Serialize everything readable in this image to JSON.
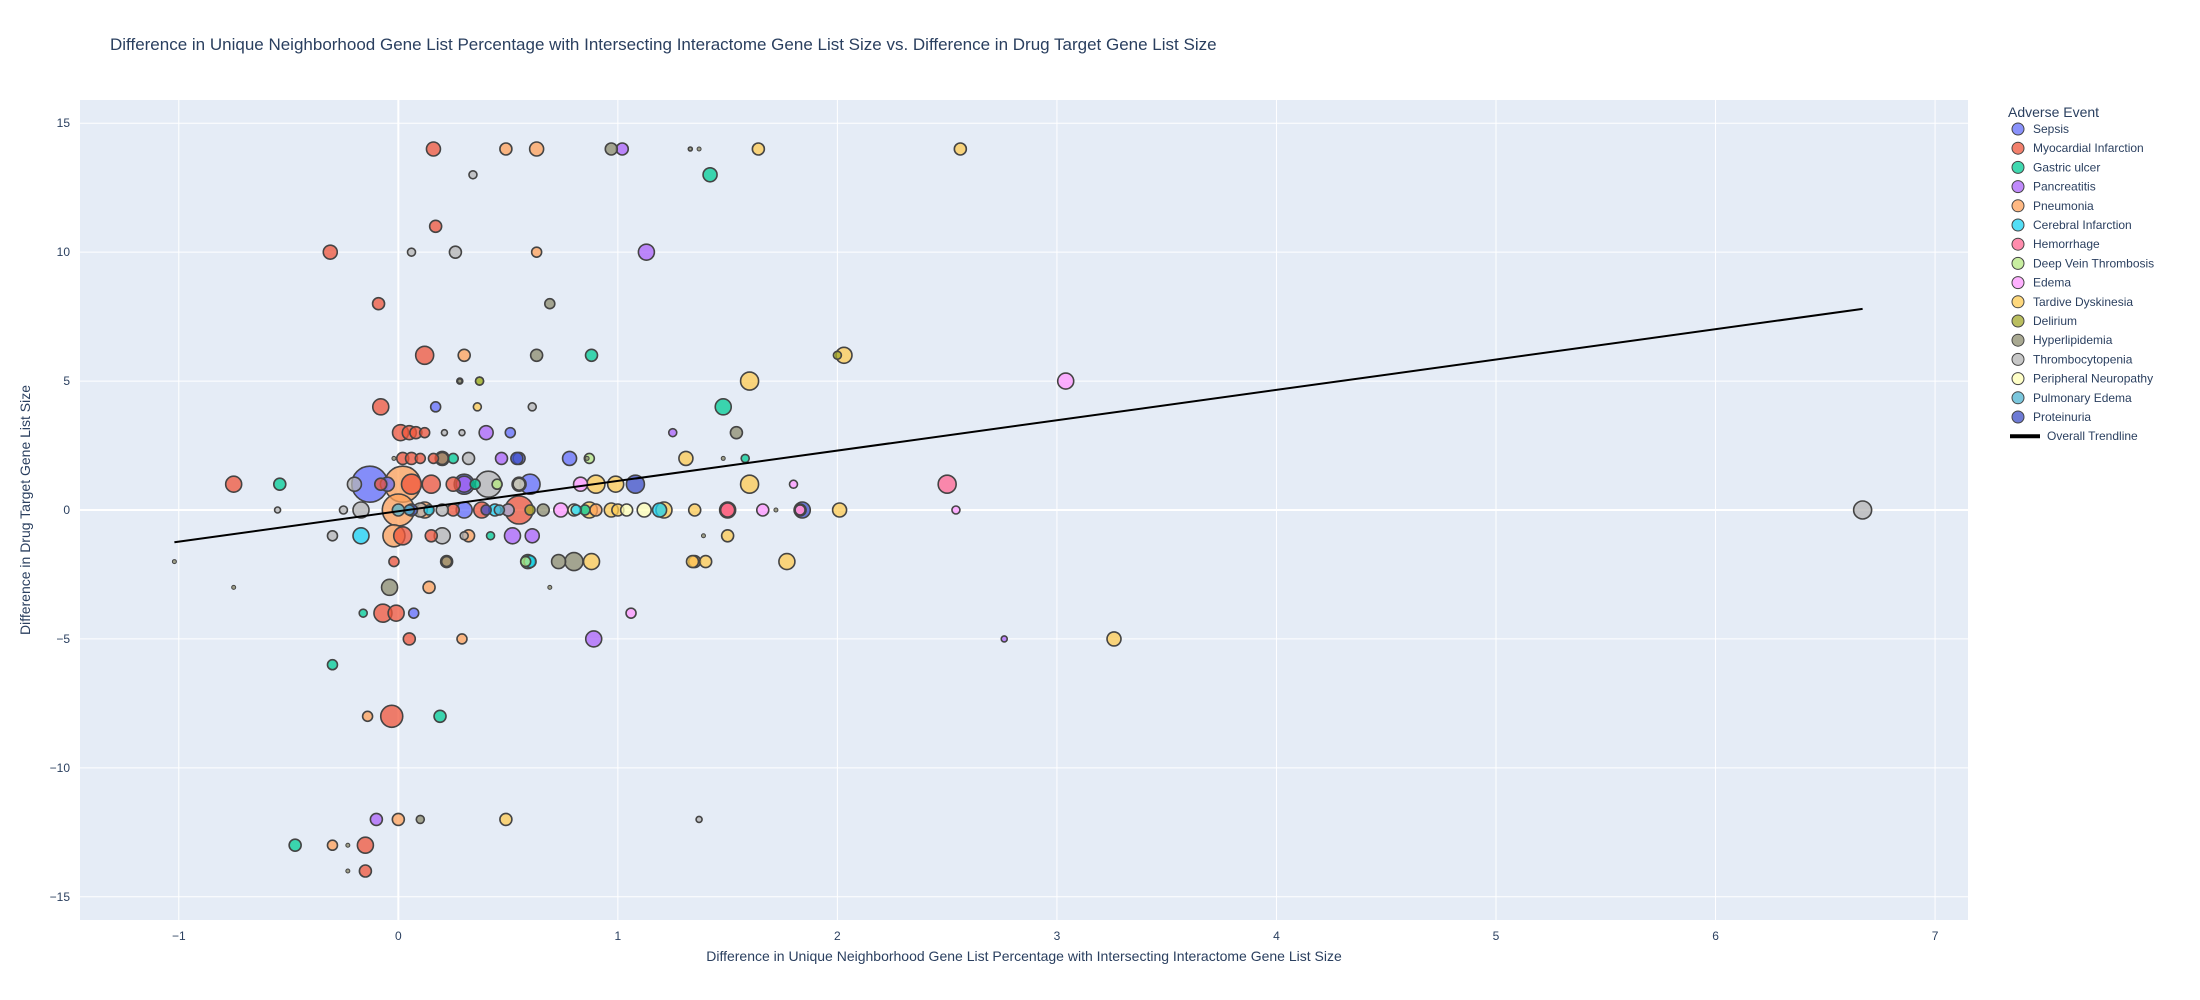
{
  "chart_data": {
    "type": "scatter",
    "title": "Difference in Unique Neighborhood Gene List Percentage with Intersecting Interactome Gene List Size vs. Difference in Drug Target Gene List Size",
    "xlabel": "Difference in Unique Neighborhood Gene List Percentage with Intersecting Interactome Gene List Size",
    "ylabel": "Difference in Drug Target Gene List Size",
    "xlim": [
      -1.45,
      7.15
    ],
    "ylim": [
      -15.9,
      15.9
    ],
    "x_ticks": [
      -1,
      0,
      1,
      2,
      3,
      4,
      5,
      6,
      7
    ],
    "y_ticks": [
      -15,
      -10,
      -5,
      0,
      5,
      10,
      15
    ],
    "grid": true,
    "legend_title": "Adverse Event",
    "legend_position": "right",
    "series": [
      {
        "name": "Sepsis",
        "color": "#636efa",
        "points": [
          [
            -0.13,
            1,
            18
          ],
          [
            0.17,
            4,
            5
          ],
          [
            0.07,
            -4,
            5
          ],
          [
            0.51,
            3,
            5
          ],
          [
            0.78,
            2,
            7
          ],
          [
            0.3,
            0,
            8
          ],
          [
            0.6,
            1,
            10
          ],
          [
            -0.05,
            1,
            7
          ],
          [
            0.55,
            2,
            6
          ]
        ]
      },
      {
        "name": "Myocardial Infarction",
        "color": "#EF553B",
        "points": [
          [
            0.16,
            14,
            7
          ],
          [
            -0.31,
            10,
            7
          ],
          [
            0.17,
            11,
            6
          ],
          [
            -0.09,
            8,
            6
          ],
          [
            0.12,
            6,
            9
          ],
          [
            -0.08,
            4,
            8
          ],
          [
            0.01,
            3,
            8
          ],
          [
            0.05,
            3,
            7
          ],
          [
            0.08,
            3,
            6
          ],
          [
            0.12,
            3,
            5
          ],
          [
            0.02,
            2,
            6
          ],
          [
            0.06,
            2,
            6
          ],
          [
            0.1,
            2,
            5
          ],
          [
            0.16,
            2,
            5
          ],
          [
            0.2,
            2,
            7
          ],
          [
            -0.75,
            1,
            8
          ],
          [
            -0.08,
            1,
            6
          ],
          [
            0.06,
            1,
            10
          ],
          [
            0.15,
            1,
            9
          ],
          [
            0.25,
            1,
            7
          ],
          [
            0.55,
            0,
            14
          ],
          [
            0.38,
            0,
            8
          ],
          [
            0.25,
            0,
            6
          ],
          [
            0.02,
            -1,
            9
          ],
          [
            0.15,
            -1,
            6
          ],
          [
            -0.02,
            -2,
            5
          ],
          [
            -0.07,
            -4,
            9
          ],
          [
            -0.01,
            -4,
            8
          ],
          [
            0.05,
            -5,
            6
          ],
          [
            -0.03,
            -8,
            11
          ],
          [
            -0.15,
            -13,
            8
          ],
          [
            -0.15,
            -14,
            6
          ],
          [
            1.5,
            0,
            8
          ],
          [
            1.83,
            0,
            5
          ]
        ]
      },
      {
        "name": "Gastric ulcer",
        "color": "#00cc96",
        "points": [
          [
            1.42,
            13,
            7
          ],
          [
            0.88,
            6,
            6
          ],
          [
            1.48,
            4,
            8
          ],
          [
            1.58,
            2,
            4
          ],
          [
            -0.54,
            1,
            6
          ],
          [
            0.25,
            2,
            5
          ],
          [
            0.59,
            -2,
            7
          ],
          [
            0.42,
            -1,
            4
          ],
          [
            -0.16,
            -4,
            4
          ],
          [
            -0.3,
            -6,
            5
          ],
          [
            0.19,
            -8,
            6
          ],
          [
            -0.47,
            -13,
            6
          ],
          [
            0.85,
            0,
            5
          ],
          [
            0.35,
            1,
            5
          ]
        ]
      },
      {
        "name": "Pancreatitis",
        "color": "#ab63fa",
        "points": [
          [
            1.02,
            14,
            6
          ],
          [
            1.13,
            10,
            8
          ],
          [
            0.4,
            3,
            7
          ],
          [
            1.25,
            3,
            4
          ],
          [
            0.47,
            2,
            6
          ],
          [
            0.3,
            1,
            8
          ],
          [
            0.52,
            -1,
            8
          ],
          [
            0.61,
            -1,
            7
          ],
          [
            0.89,
            -5,
            8
          ],
          [
            -0.1,
            -12,
            6
          ],
          [
            2.76,
            -5,
            3
          ],
          [
            0.5,
            0,
            6
          ]
        ]
      },
      {
        "name": "Pneumonia",
        "color": "#FFA15A",
        "points": [
          [
            0.49,
            14,
            6
          ],
          [
            0.63,
            14,
            7
          ],
          [
            0.63,
            10,
            5
          ],
          [
            0.3,
            6,
            6
          ],
          [
            0.02,
            1,
            18
          ],
          [
            0.0,
            0,
            16
          ],
          [
            0.12,
            0,
            8
          ],
          [
            -0.02,
            -1,
            11
          ],
          [
            0.22,
            -2,
            6
          ],
          [
            0.14,
            -3,
            6
          ],
          [
            0.32,
            -1,
            6
          ],
          [
            -0.14,
            -8,
            5
          ],
          [
            0.29,
            -5,
            5
          ],
          [
            0.0,
            -12,
            6
          ],
          [
            -0.3,
            -13,
            5
          ],
          [
            0.9,
            0,
            6
          ],
          [
            1.35,
            -2,
            6
          ]
        ]
      },
      {
        "name": "Cerebral Infarction",
        "color": "#19d3f3",
        "points": [
          [
            -0.17,
            -1,
            8
          ],
          [
            0.44,
            0,
            6
          ],
          [
            0.81,
            0,
            5
          ],
          [
            1.19,
            0,
            7
          ],
          [
            0.6,
            -2,
            6
          ],
          [
            0.14,
            0,
            5
          ]
        ]
      },
      {
        "name": "Hemorrhage",
        "color": "#FF6692",
        "points": [
          [
            2.5,
            1,
            9
          ],
          [
            1.5,
            0,
            7
          ]
        ]
      },
      {
        "name": "Deep Vein Thrombosis",
        "color": "#B6E880",
        "points": [
          [
            0.37,
            5,
            4
          ],
          [
            0.87,
            2,
            5
          ],
          [
            0.58,
            -2,
            5
          ],
          [
            0.45,
            1,
            5
          ]
        ]
      },
      {
        "name": "Edema",
        "color": "#FF97FF",
        "points": [
          [
            3.04,
            5,
            8
          ],
          [
            0.83,
            1,
            7
          ],
          [
            0.74,
            0,
            7
          ],
          [
            1.06,
            -4,
            5
          ],
          [
            1.66,
            0,
            6
          ],
          [
            1.8,
            1,
            4
          ],
          [
            2.54,
            0,
            4
          ],
          [
            1.83,
            0,
            5
          ]
        ]
      },
      {
        "name": "Tardive Dyskinesia",
        "color": "#FECB52",
        "points": [
          [
            1.64,
            14,
            6
          ],
          [
            2.56,
            14,
            6
          ],
          [
            2.03,
            6,
            8
          ],
          [
            1.6,
            5,
            9
          ],
          [
            1.31,
            2,
            7
          ],
          [
            1.6,
            1,
            9
          ],
          [
            0.9,
            1,
            9
          ],
          [
            0.99,
            1,
            8
          ],
          [
            0.87,
            0,
            8
          ],
          [
            0.97,
            0,
            7
          ],
          [
            1.21,
            0,
            8
          ],
          [
            1.35,
            0,
            6
          ],
          [
            2.01,
            0,
            7
          ],
          [
            1.0,
            0,
            6
          ],
          [
            0.88,
            -2,
            8
          ],
          [
            1.34,
            -2,
            6
          ],
          [
            1.4,
            -2,
            6
          ],
          [
            1.5,
            -1,
            6
          ],
          [
            1.77,
            -2,
            8
          ],
          [
            3.26,
            -5,
            7
          ],
          [
            0.49,
            -12,
            6
          ],
          [
            0.36,
            4,
            4
          ]
        ]
      },
      {
        "name": "Delirium",
        "color": "#a3a82a",
        "points": [
          [
            0.37,
            5,
            4
          ],
          [
            2.0,
            6,
            4
          ],
          [
            0.6,
            0,
            5
          ]
        ]
      },
      {
        "name": "Hyperlipidemia",
        "color": "#8c8c6e",
        "points": [
          [
            0.97,
            14,
            6
          ],
          [
            1.33,
            14,
            2
          ],
          [
            0.69,
            8,
            5
          ],
          [
            0.63,
            6,
            6
          ],
          [
            1.54,
            3,
            6
          ],
          [
            0.8,
            -2,
            9
          ],
          [
            0.73,
            -2,
            7
          ],
          [
            -0.04,
            -3,
            8
          ],
          [
            0.1,
            -12,
            4
          ],
          [
            0.22,
            -2,
            5
          ],
          [
            0.2,
            2,
            6
          ],
          [
            0.66,
            0,
            6
          ]
        ]
      },
      {
        "name": "Thrombocytopenia",
        "color": "#b4b4b4",
        "points": [
          [
            0.26,
            10,
            6
          ],
          [
            0.34,
            13,
            4
          ],
          [
            0.06,
            10,
            4
          ],
          [
            0.28,
            5,
            3
          ],
          [
            0.61,
            4,
            4
          ],
          [
            0.21,
            3,
            3
          ],
          [
            0.29,
            3,
            3
          ],
          [
            0.32,
            2,
            6
          ],
          [
            -0.2,
            1,
            7
          ],
          [
            0.41,
            1,
            13
          ],
          [
            0.55,
            1,
            6
          ],
          [
            -0.17,
            0,
            8
          ],
          [
            0.2,
            0,
            6
          ],
          [
            0.1,
            0,
            7
          ],
          [
            0.5,
            0,
            6
          ],
          [
            6.67,
            0,
            9
          ],
          [
            -0.3,
            -1,
            5
          ],
          [
            0.2,
            -1,
            8
          ],
          [
            0.3,
            -1,
            4
          ],
          [
            1.37,
            -12,
            3
          ],
          [
            -0.25,
            0,
            4
          ],
          [
            -0.55,
            0,
            3
          ]
        ]
      },
      {
        "name": "Peripheral Neuropathy",
        "color": "#ffffb4",
        "points": [
          [
            0.55,
            1,
            7
          ],
          [
            0.8,
            0,
            6
          ],
          [
            1.12,
            0,
            7
          ],
          [
            1.83,
            0,
            6
          ],
          [
            1.04,
            0,
            6
          ]
        ]
      },
      {
        "name": "Pulmonary Edema",
        "color": "#4fb4d2",
        "points": [
          [
            0.0,
            0,
            6
          ],
          [
            0.05,
            0,
            5
          ],
          [
            0.46,
            0,
            5
          ]
        ]
      },
      {
        "name": "Proteinuria",
        "color": "#3d4fc7",
        "points": [
          [
            0.3,
            1,
            10
          ],
          [
            1.08,
            1,
            9
          ],
          [
            1.84,
            0,
            8
          ],
          [
            0.06,
            0,
            6
          ],
          [
            0.54,
            2,
            6
          ],
          [
            0.4,
            0,
            5
          ]
        ]
      }
    ],
    "trendline": {
      "name": "Overall Trendline",
      "color": "#000000",
      "points": [
        [
          -1.02,
          -1.25
        ],
        [
          6.67,
          7.8
        ]
      ]
    },
    "small_markers": [
      [
        -1.02,
        -2
      ],
      [
        -0.75,
        -3
      ],
      [
        -0.23,
        -13
      ],
      [
        -0.23,
        -14
      ],
      [
        1.37,
        14
      ],
      [
        1.39,
        -1
      ],
      [
        1.48,
        2
      ],
      [
        1.72,
        0
      ],
      [
        0.69,
        -3
      ],
      [
        0.86,
        2
      ],
      [
        0.28,
        5
      ],
      [
        -0.02,
        2
      ]
    ]
  }
}
